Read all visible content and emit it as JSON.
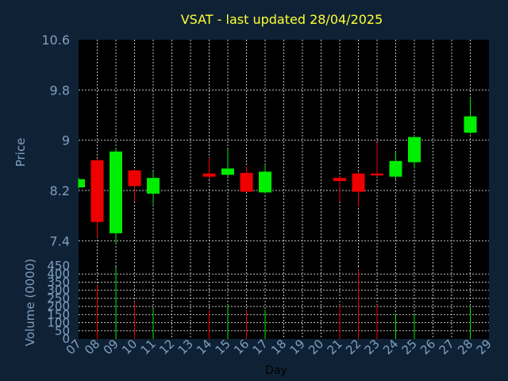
{
  "chart_data": {
    "type": "candlestick",
    "title": "VSAT - last updated 28/04/2025",
    "xlabel": "Day",
    "colors": {
      "background": "#0f2235",
      "plot_bg": "#000000",
      "up": "#00ee00",
      "down": "#ee0000",
      "title": "#ffff33",
      "axis_text": "#7f9fbf",
      "grid": "#bfbfbf"
    },
    "days": [
      "07",
      "08",
      "09",
      "10",
      "11",
      "12",
      "13",
      "14",
      "15",
      "16",
      "17",
      "18",
      "19",
      "20",
      "21",
      "22",
      "23",
      "24",
      "25",
      "26",
      "27",
      "28",
      "29"
    ],
    "price_panel": {
      "ylabel": "Price",
      "ylim": [
        7.0,
        10.6
      ],
      "yticks": [
        "7.4",
        "8.2",
        "9",
        "9.8",
        "10.6"
      ],
      "candles": [
        {
          "day": "07",
          "open": 8.25,
          "high": 8.4,
          "low": 8.23,
          "close": 8.38
        },
        {
          "day": "08",
          "open": 8.68,
          "high": 8.7,
          "low": 7.45,
          "close": 7.7
        },
        {
          "day": "09",
          "open": 7.52,
          "high": 8.88,
          "low": 7.35,
          "close": 8.82
        },
        {
          "day": "10",
          "open": 8.52,
          "high": 8.54,
          "low": 8.02,
          "close": 8.27
        },
        {
          "day": "11",
          "open": 8.15,
          "high": 8.5,
          "low": 7.98,
          "close": 8.4
        },
        {
          "day": "14",
          "open": 8.47,
          "high": 8.72,
          "low": 8.38,
          "close": 8.42
        },
        {
          "day": "15",
          "open": 8.45,
          "high": 8.86,
          "low": 8.42,
          "close": 8.55
        },
        {
          "day": "16",
          "open": 8.48,
          "high": 8.58,
          "low": 8.18,
          "close": 8.18
        },
        {
          "day": "17",
          "open": 8.17,
          "high": 8.6,
          "low": 8.15,
          "close": 8.5
        },
        {
          "day": "21",
          "open": 8.4,
          "high": 8.42,
          "low": 8.02,
          "close": 8.35
        },
        {
          "day": "22",
          "open": 8.47,
          "high": 8.5,
          "low": 7.95,
          "close": 8.18
        },
        {
          "day": "23",
          "open": 8.47,
          "high": 8.96,
          "low": 8.42,
          "close": 8.44
        },
        {
          "day": "24",
          "open": 8.42,
          "high": 8.82,
          "low": 8.38,
          "close": 8.67
        },
        {
          "day": "25",
          "open": 8.65,
          "high": 9.08,
          "low": 8.55,
          "close": 9.05
        },
        {
          "day": "28",
          "open": 9.12,
          "high": 9.68,
          "low": 9.1,
          "close": 9.38
        }
      ]
    },
    "volume_panel": {
      "ylabel": "Volume (0000)",
      "ylim": [
        0,
        450
      ],
      "yticks": [
        "0",
        "50",
        "100",
        "150",
        "200",
        "250",
        "300",
        "350",
        "400",
        "450"
      ],
      "bars": [
        {
          "day": "08",
          "value": 330,
          "dir": "down"
        },
        {
          "day": "09",
          "value": 440,
          "dir": "up"
        },
        {
          "day": "10",
          "value": 230,
          "dir": "down"
        },
        {
          "day": "11",
          "value": 185,
          "dir": "up"
        },
        {
          "day": "14",
          "value": 175,
          "dir": "down"
        },
        {
          "day": "15",
          "value": 210,
          "dir": "up"
        },
        {
          "day": "16",
          "value": 175,
          "dir": "down"
        },
        {
          "day": "17",
          "value": 180,
          "dir": "up"
        },
        {
          "day": "21",
          "value": 210,
          "dir": "down"
        },
        {
          "day": "22",
          "value": 430,
          "dir": "down"
        },
        {
          "day": "23",
          "value": 210,
          "dir": "down"
        },
        {
          "day": "24",
          "value": 155,
          "dir": "up"
        },
        {
          "day": "25",
          "value": 150,
          "dir": "up"
        },
        {
          "day": "28",
          "value": 200,
          "dir": "up"
        }
      ]
    }
  }
}
